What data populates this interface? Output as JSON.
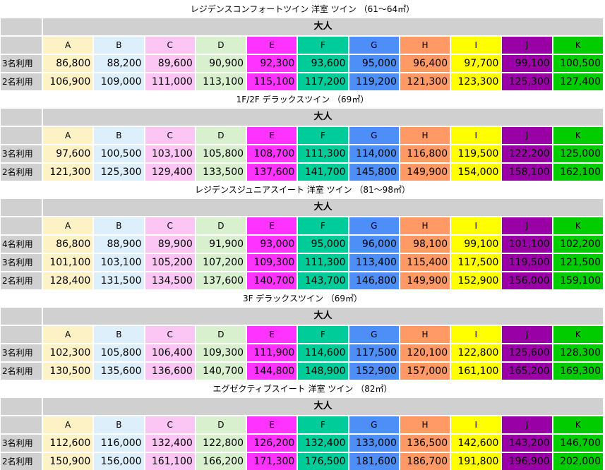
{
  "column_headers": [
    "A",
    "B",
    "C",
    "D",
    "E",
    "F",
    "G",
    "H",
    "I",
    "J",
    "K"
  ],
  "column_colors": [
    "#fdf2c6",
    "#dceffb",
    "#fbc6f3",
    "#d9f0cf",
    "#ff33ff",
    "#00cc99",
    "#4d8ef7",
    "#ff9966",
    "#ffff00",
    "#9900a6",
    "#00cc00"
  ],
  "adult_label": "大人",
  "sections": [
    {
      "title": "レジデンスコンフォートツイン 洋室 ツイン （61～64㎡）",
      "rows": [
        {
          "label": "3名利用",
          "prices": [
            "86,800",
            "88,200",
            "89,600",
            "90,900",
            "92,300",
            "93,600",
            "95,000",
            "96,400",
            "97,700",
            "99,100",
            "100,500"
          ]
        },
        {
          "label": "2名利用",
          "prices": [
            "106,900",
            "109,000",
            "111,000",
            "113,100",
            "115,100",
            "117,200",
            "119,200",
            "121,300",
            "123,300",
            "125,300",
            "127,400"
          ]
        }
      ]
    },
    {
      "title": "1F/2F デラックスツイン （69㎡）",
      "rows": [
        {
          "label": "3名利用",
          "prices": [
            "97,600",
            "100,500",
            "103,100",
            "105,800",
            "108,700",
            "111,300",
            "114,000",
            "116,800",
            "119,500",
            "122,200",
            "125,000"
          ]
        },
        {
          "label": "2名利用",
          "prices": [
            "121,300",
            "125,300",
            "129,400",
            "133,500",
            "137,600",
            "141,700",
            "145,800",
            "149,900",
            "154,000",
            "158,100",
            "162,100"
          ]
        }
      ]
    },
    {
      "title": "レジデンスジュニアスイート 洋室 ツイン （81～98㎡）",
      "rows": [
        {
          "label": "4名利用",
          "prices": [
            "86,800",
            "88,900",
            "89,900",
            "91,900",
            "93,000",
            "95,000",
            "96,000",
            "98,100",
            "99,100",
            "101,100",
            "102,200"
          ]
        },
        {
          "label": "3名利用",
          "prices": [
            "101,100",
            "103,100",
            "105,200",
            "107,200",
            "109,300",
            "111,300",
            "113,400",
            "115,400",
            "117,500",
            "119,500",
            "121,500"
          ]
        },
        {
          "label": "2名利用",
          "prices": [
            "128,400",
            "131,500",
            "134,500",
            "137,600",
            "140,700",
            "143,700",
            "146,800",
            "149,900",
            "152,900",
            "156,000",
            "159,100"
          ]
        }
      ]
    },
    {
      "title": "3F デラックスツイン （69㎡）",
      "rows": [
        {
          "label": "3名利用",
          "prices": [
            "102,300",
            "105,800",
            "106,400",
            "109,300",
            "111,900",
            "114,600",
            "117,500",
            "120,100",
            "122,800",
            "125,600",
            "128,300"
          ]
        },
        {
          "label": "2名利用",
          "prices": [
            "130,500",
            "135,600",
            "136,600",
            "140,700",
            "144,800",
            "148,900",
            "152,900",
            "157,000",
            "161,100",
            "165,200",
            "169,300"
          ]
        }
      ]
    },
    {
      "title": "エグゼクティブスイート 洋室 ツイン （82㎡）",
      "rows": [
        {
          "label": "3名利用",
          "prices": [
            "112,600",
            "116,000",
            "132,400",
            "122,800",
            "126,200",
            "132,400",
            "133,000",
            "136,500",
            "142,600",
            "143,200",
            "146,700"
          ]
        },
        {
          "label": "2名利用",
          "prices": [
            "150,900",
            "156,000",
            "161,100",
            "166,200",
            "171,300",
            "176,500",
            "181,600",
            "186,700",
            "191,800",
            "196,900",
            "202,000"
          ]
        }
      ]
    }
  ]
}
